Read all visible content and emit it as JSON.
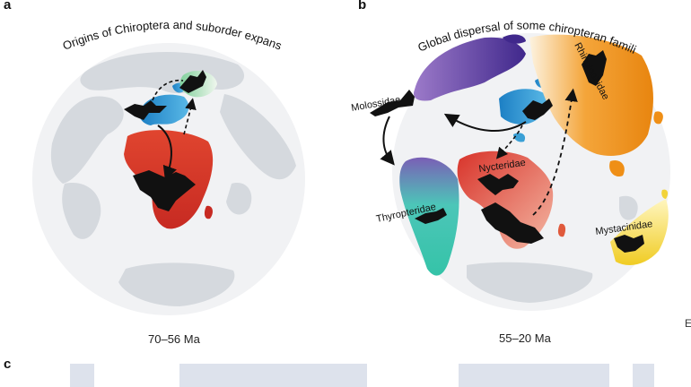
{
  "panels": {
    "a": {
      "letter": "a",
      "title": "Origins of Chiroptera and suborder expansion",
      "time": "70–56 Ma"
    },
    "b": {
      "letter": "b",
      "title": "Global dispersal of some chiropteran families",
      "time": "55–20 Ma",
      "families": [
        "Molossidae",
        "Rhinolophidae",
        "Nycteridae",
        "Thyropteridae",
        "Mystacinidae"
      ]
    },
    "c": {
      "letter": "c"
    },
    "edge_letter": "E",
    "colors": {
      "land": "#d5d9de",
      "europe_blue": "#2a8fcc",
      "africa_red": "#d8392a",
      "asia_orange": "#ef8f16",
      "purple": "#6a4aa8",
      "teal": "#3fc7b3",
      "yellow": "#f2d33a",
      "bat": "#111111"
    }
  }
}
